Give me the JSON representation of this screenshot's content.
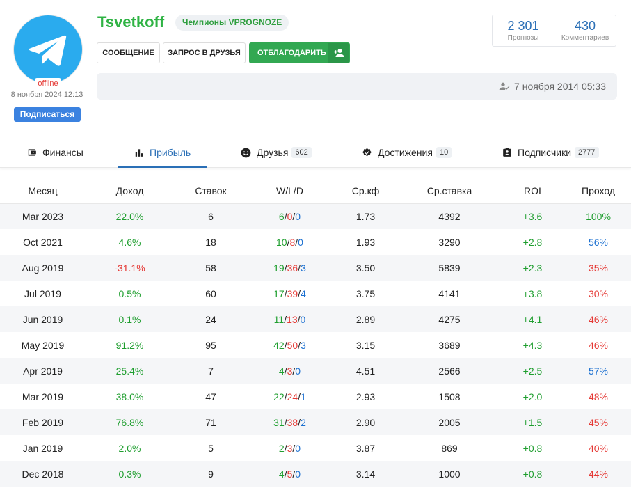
{
  "profile": {
    "username": "Tsvetkoff",
    "badge": "Чемпионы VPROGNOZE",
    "status": "offline",
    "last_seen": "8 ноября 2024 12:13",
    "subscribe_label": "Подписаться",
    "registered": "7 ноября 2014 05:33",
    "avatar_icon": "telegram-logo"
  },
  "actions": {
    "message": "СООБЩЕНИЕ",
    "friend_request": "ЗАПРОС В ДРУЗЬЯ",
    "thank": "ОТБЛАГОДАРИТЬ"
  },
  "stats": [
    {
      "value": "2 301",
      "label": "Прогнозы"
    },
    {
      "value": "430",
      "label": "Комментариев"
    }
  ],
  "tabs": [
    {
      "label": "Финансы",
      "count": "",
      "icon": "wallet-icon"
    },
    {
      "label": "Прибыль",
      "count": "",
      "icon": "bar-chart-icon",
      "active": true
    },
    {
      "label": "Друзья",
      "count": "602",
      "icon": "smile-icon"
    },
    {
      "label": "Достижения",
      "count": "10",
      "icon": "verified-icon"
    },
    {
      "label": "Подписчики",
      "count": "2777",
      "icon": "contact-icon"
    }
  ],
  "table": {
    "columns": [
      "Месяц",
      "Доход",
      "Ставок",
      "W/L/D",
      "Ср.кф",
      "Ср.ставка",
      "ROI",
      "Проход"
    ],
    "rows": [
      {
        "month": "Mar 2023",
        "income": "22.0%",
        "bets": "6",
        "w": "6",
        "l": "0",
        "d": "0",
        "avg_odds": "1.73",
        "avg_stake": "4392",
        "roi": "+3.6",
        "pass": "100%"
      },
      {
        "month": "Oct 2021",
        "income": "4.6%",
        "bets": "18",
        "w": "10",
        "l": "8",
        "d": "0",
        "avg_odds": "1.93",
        "avg_stake": "3290",
        "roi": "+2.8",
        "pass": "56%"
      },
      {
        "month": "Aug 2019",
        "income": "-31.1%",
        "bets": "58",
        "w": "19",
        "l": "36",
        "d": "3",
        "avg_odds": "3.50",
        "avg_stake": "5839",
        "roi": "+2.3",
        "pass": "35%"
      },
      {
        "month": "Jul 2019",
        "income": "0.5%",
        "bets": "60",
        "w": "17",
        "l": "39",
        "d": "4",
        "avg_odds": "3.75",
        "avg_stake": "4141",
        "roi": "+3.8",
        "pass": "30%"
      },
      {
        "month": "Jun 2019",
        "income": "0.1%",
        "bets": "24",
        "w": "11",
        "l": "13",
        "d": "0",
        "avg_odds": "2.89",
        "avg_stake": "4275",
        "roi": "+4.1",
        "pass": "46%"
      },
      {
        "month": "May 2019",
        "income": "91.2%",
        "bets": "95",
        "w": "42",
        "l": "50",
        "d": "3",
        "avg_odds": "3.15",
        "avg_stake": "3689",
        "roi": "+4.3",
        "pass": "46%"
      },
      {
        "month": "Apr 2019",
        "income": "25.4%",
        "bets": "7",
        "w": "4",
        "l": "3",
        "d": "0",
        "avg_odds": "4.51",
        "avg_stake": "2566",
        "roi": "+2.5",
        "pass": "57%"
      },
      {
        "month": "Mar 2019",
        "income": "38.0%",
        "bets": "47",
        "w": "22",
        "l": "24",
        "d": "1",
        "avg_odds": "2.93",
        "avg_stake": "1508",
        "roi": "+2.0",
        "pass": "48%"
      },
      {
        "month": "Feb 2019",
        "income": "76.8%",
        "bets": "71",
        "w": "31",
        "l": "38",
        "d": "2",
        "avg_odds": "2.90",
        "avg_stake": "2005",
        "roi": "+1.5",
        "pass": "45%"
      },
      {
        "month": "Jan 2019",
        "income": "2.0%",
        "bets": "5",
        "w": "2",
        "l": "3",
        "d": "0",
        "avg_odds": "3.87",
        "avg_stake": "869",
        "roi": "+0.8",
        "pass": "40%"
      },
      {
        "month": "Dec 2018",
        "income": "0.3%",
        "bets": "9",
        "w": "4",
        "l": "5",
        "d": "0",
        "avg_odds": "3.14",
        "avg_stake": "1000",
        "roi": "+0.8",
        "pass": "44%"
      }
    ]
  },
  "colors": {
    "positive": "#1e9e2e",
    "negative": "#e53935",
    "neutral_blue": "#1a6fd0",
    "accent": "#2a6fb6",
    "brand_green": "#32a852"
  }
}
